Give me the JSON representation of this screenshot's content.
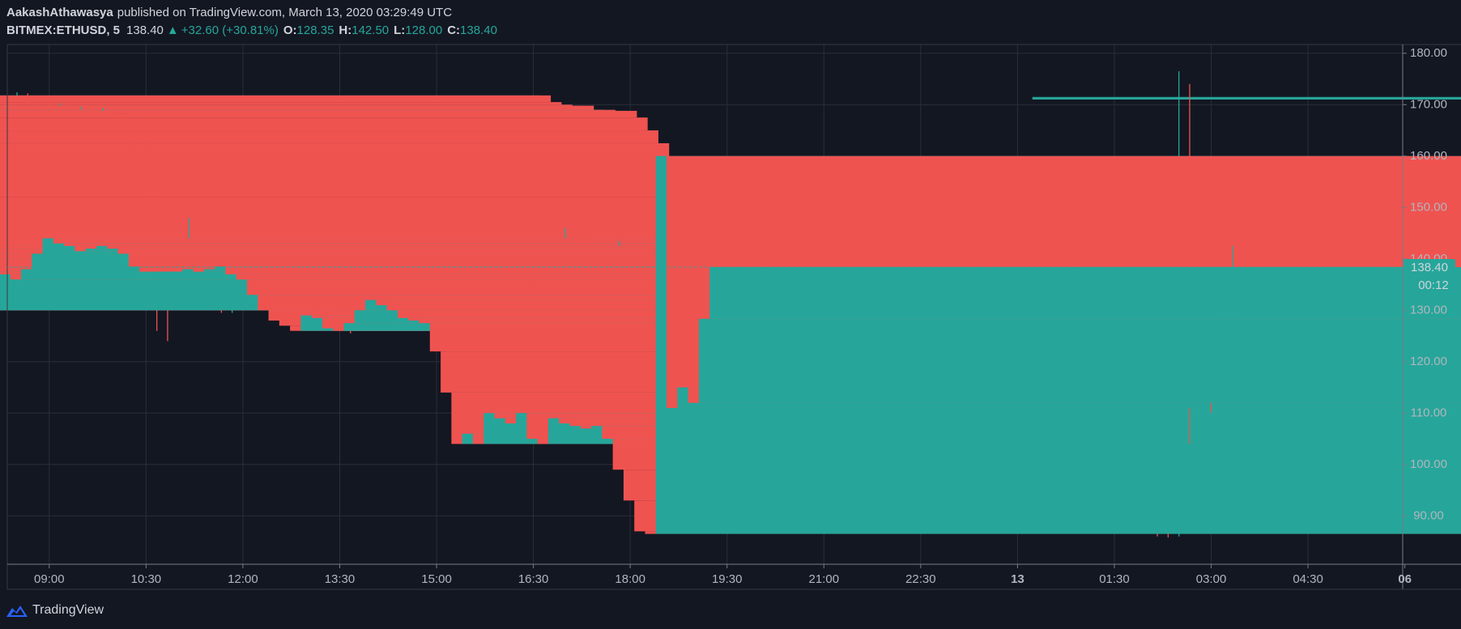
{
  "header": {
    "author": "AakashAthawasya",
    "published": "published on TradingView.com, March 13, 2020 03:29:49 UTC",
    "symbol": "BITMEX:ETHUSD, 5",
    "price": "138.40",
    "arrow": "▲",
    "change": "+32.60 (+30.81%)",
    "ohlc": [
      {
        "key": "O:",
        "value": "128.35"
      },
      {
        "key": "H:",
        "value": "142.50"
      },
      {
        "key": "L:",
        "value": "128.00"
      },
      {
        "key": "C:",
        "value": "138.40"
      }
    ]
  },
  "brand": "TradingView",
  "chart_data": {
    "type": "candlestick",
    "x": [
      "08:20",
      "08:30",
      "08:40",
      "08:50",
      "09:00",
      "09:10",
      "09:20",
      "09:30",
      "09:40",
      "09:50",
      "10:00",
      "10:10",
      "10:20",
      "10:30",
      "10:40",
      "10:50",
      "11:00",
      "11:10",
      "11:20",
      "11:30",
      "11:40",
      "11:50",
      "12:00",
      "12:10",
      "12:20",
      "12:30",
      "12:40",
      "12:50",
      "13:00",
      "13:10",
      "13:20",
      "13:30",
      "13:40",
      "13:50",
      "14:00",
      "14:10",
      "14:20",
      "14:30",
      "14:40",
      "14:50",
      "15:00",
      "15:10",
      "15:20",
      "15:30",
      "15:40",
      "15:50",
      "16:00",
      "16:10",
      "16:20",
      "16:30",
      "16:40",
      "16:50",
      "17:00",
      "17:10",
      "17:20",
      "17:30",
      "17:40",
      "17:50",
      "18:00",
      "18:10",
      "18:20",
      "18:30",
      "18:40",
      "18:50",
      "19:00",
      "19:10",
      "19:20",
      "19:30",
      "19:40",
      "19:50",
      "20:00",
      "20:10",
      "20:20",
      "20:30",
      "20:40",
      "20:50",
      "21:00",
      "21:10",
      "21:20",
      "21:30",
      "21:40",
      "21:50",
      "22:00",
      "22:10",
      "22:20",
      "22:30",
      "22:40",
      "22:50",
      "23:00",
      "23:10",
      "23:20",
      "23:30",
      "23:40",
      "23:50",
      "00:00",
      "00:10",
      "00:20",
      "00:30",
      "00:40",
      "00:50",
      "01:00",
      "01:10",
      "01:20",
      "01:30",
      "01:40",
      "01:50",
      "02:00",
      "02:10",
      "02:20",
      "02:30",
      "02:40",
      "02:50",
      "03:00",
      "03:10",
      "03:20"
    ],
    "open": [
      171.0,
      171.5,
      171.8,
      170.5,
      170.0,
      169.5,
      169.8,
      168.5,
      169.0,
      168.5,
      168.8,
      167.5,
      165.0,
      162.5,
      152.0,
      134.0,
      132,
      138,
      140,
      137,
      134,
      130,
      134,
      139,
      142.5,
      141,
      140,
      138,
      136,
      137,
      135,
      133,
      130.5,
      130,
      135,
      137,
      140.5,
      142,
      141,
      139,
      140.5,
      138,
      140,
      141,
      140.5,
      141,
      140,
      137.5,
      136.5,
      137,
      136,
      138,
      141,
      144,
      143,
      142.5,
      141.5,
      142,
      142.5,
      142,
      141,
      138.5,
      137.5,
      137.5,
      137.5,
      137.5,
      138,
      137.5,
      138,
      138.5,
      137,
      136,
      133,
      130,
      128,
      127,
      126,
      129,
      128.5,
      126.5,
      126,
      127.5,
      130,
      132,
      131,
      130,
      128.5,
      128,
      127.5,
      122,
      114,
      104,
      106,
      104,
      110,
      109,
      108,
      110,
      105,
      104,
      109,
      108,
      107.5,
      107,
      107.5,
      105,
      99,
      93,
      87,
      86.5,
      160,
      111,
      115,
      112,
      128.35
    ],
    "high": [
      172.3,
      172.4,
      172.2,
      171.0,
      170.6,
      170.3,
      170.2,
      169.6,
      169.5,
      169.4,
      169.2,
      168.0,
      165.8,
      163.5,
      152.5,
      143.0,
      140.0,
      148.0,
      141.0,
      138.0,
      135.0,
      135.5,
      140.5,
      143.8,
      143.5,
      142.0,
      141.0,
      139.0,
      138.0,
      138.0,
      136.0,
      134.0,
      131.5,
      136.0,
      138.5,
      141.5,
      143.5,
      143.0,
      141.5,
      141.5,
      141.0,
      141.0,
      142.0,
      142.0,
      142.0,
      142.0,
      140.5,
      138.0,
      138.0,
      138.0,
      139.0,
      141.8,
      146.0,
      144.5,
      143.8,
      143.0,
      142.5,
      143.5,
      143.0,
      142.5,
      141.5,
      139.0,
      138.5,
      138.5,
      138.3,
      138.8,
      138.5,
      138.5,
      139.5,
      139.0,
      137.5,
      136.5,
      133.5,
      130.5,
      128.8,
      127.5,
      129.8,
      129.5,
      129.0,
      127.0,
      128.0,
      130.5,
      133.5,
      132.5,
      131.5,
      130.5,
      129.0,
      128.5,
      128.0,
      123.0,
      114.5,
      108.0,
      107.0,
      113.5,
      111.0,
      109.5,
      110.5,
      110.5,
      106.0,
      110.0,
      109.5,
      108.5,
      108.2,
      108.0,
      108.0,
      105.5,
      99.5,
      93.5,
      87.5,
      176.5,
      174.0,
      118.0,
      116.0,
      129.0,
      142.5
    ],
    "low": [
      170.5,
      171.0,
      170.2,
      169.6,
      169.0,
      169.2,
      168.2,
      168.3,
      168.0,
      168.2,
      167.0,
      164.5,
      161.5,
      150.0,
      126.0,
      124.0,
      131.5,
      136.0,
      136.0,
      133.0,
      129.5,
      129.5,
      133.5,
      138.5,
      140.5,
      139.5,
      137.5,
      135.5,
      135.5,
      126.5,
      132.5,
      130.0,
      125.5,
      129.5,
      134.5,
      136.5,
      140.0,
      140.5,
      138.5,
      138.5,
      137.5,
      137.5,
      139.5,
      140.0,
      140.0,
      139.5,
      137.0,
      134.5,
      136.0,
      135.5,
      135.5,
      137.5,
      140.5,
      142.5,
      142.0,
      141.0,
      141.0,
      141.5,
      141.5,
      140.5,
      138.0,
      137.0,
      137.0,
      137.0,
      137.0,
      137.2,
      137.0,
      137.2,
      137.8,
      136.5,
      135.5,
      132.5,
      129.5,
      127.5,
      126.5,
      124.5,
      125.5,
      128.0,
      126.0,
      125.0,
      125.5,
      127.0,
      129.5,
      130.5,
      129.5,
      128.0,
      127.5,
      127.0,
      121.0,
      112.5,
      97.0,
      103.0,
      99.5,
      103.5,
      108.5,
      107.0,
      107.5,
      104.0,
      103.0,
      103.5,
      107.0,
      106.5,
      106.5,
      106.5,
      104.0,
      97.0,
      92.0,
      86.0,
      85.8,
      86.0,
      104.0,
      96.5,
      110.0,
      111.0,
      128.0
    ],
    "close": [
      171.5,
      171.8,
      170.5,
      170.0,
      169.5,
      169.8,
      168.5,
      169.0,
      168.5,
      168.8,
      167.5,
      165.0,
      162.5,
      152.0,
      134.0,
      132.0,
      138,
      140,
      137,
      134,
      130,
      134,
      139,
      142.5,
      141,
      140,
      138,
      136,
      137,
      135,
      133,
      130.5,
      130,
      135,
      137,
      140.5,
      142,
      141,
      139,
      140.5,
      138,
      140,
      141,
      140.5,
      141,
      140,
      137.5,
      136.5,
      137,
      136,
      138,
      141,
      144,
      143,
      142.5,
      141.5,
      142,
      142.5,
      142,
      141,
      138.5,
      137.5,
      137.5,
      137.5,
      137.5,
      138,
      137.5,
      138,
      138.5,
      137,
      136,
      133,
      130,
      128,
      127,
      126,
      129,
      128.5,
      126.5,
      126,
      127.5,
      130,
      132,
      131,
      130,
      128.5,
      128,
      127.5,
      122,
      114,
      104,
      106,
      104,
      110,
      109,
      108,
      110,
      105,
      104,
      109,
      108,
      107.5,
      107,
      107.5,
      105,
      99,
      93,
      87,
      86.5,
      160,
      111,
      115,
      112,
      128.35,
      138.4
    ],
    "up_color": "#26a69a",
    "down_color": "#ef5350",
    "xlim": [
      "08:21",
      "05:58"
    ],
    "xticks": [
      "09:00",
      "10:30",
      "12:00",
      "13:30",
      "15:00",
      "16:30",
      "18:00",
      "19:30",
      "21:00",
      "22:30",
      {
        "value": "00:00",
        "label": "13"
      },
      "01:30",
      "03:00",
      "04:30",
      {
        "value": "06:00",
        "label": "06"
      }
    ],
    "ylim": [
      80.6,
      181.7
    ],
    "yticks": [
      {
        "value": 90,
        "label": "90.00"
      },
      {
        "value": 100,
        "label": "100.00"
      },
      {
        "value": 110,
        "label": "110.00"
      },
      {
        "value": 120,
        "label": "120.00"
      },
      {
        "value": 130,
        "label": "130.00"
      },
      {
        "value": 140,
        "label": "140.00"
      },
      {
        "value": 150,
        "label": "150.00"
      },
      {
        "value": 160,
        "label": "160.00"
      },
      {
        "value": 170,
        "label": "170.00"
      },
      {
        "value": 180,
        "label": "180.00"
      }
    ],
    "grid": true,
    "last_price": {
      "value": 138.4,
      "label": "138.40"
    },
    "countdown": "00:12"
  }
}
